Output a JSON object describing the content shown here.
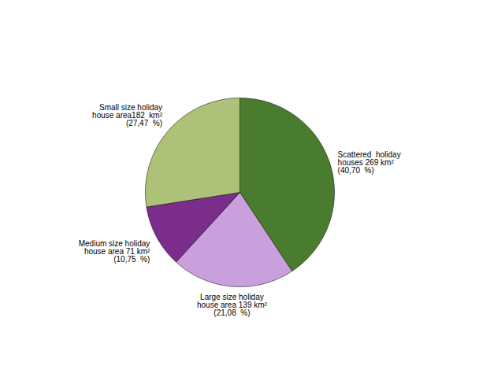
{
  "chart_data": {
    "type": "pie",
    "categories": [
      "Scattered  holiday\nhouses 269 km²\n(40,70  %)",
      "Large size holiday\nhouse area 139 km²\n(21,08  %)",
      "Medium size holiday\nhouse area 71 km²\n(10,75  %)",
      "Small size holiday\nhouse area182  km²\n(27,47  %)"
    ],
    "values": [
      40.7,
      21.08,
      10.75,
      27.47
    ],
    "colors": [
      "#4a7c2f",
      "#c9a0dc",
      "#7b2d8b",
      "#adc178"
    ]
  }
}
